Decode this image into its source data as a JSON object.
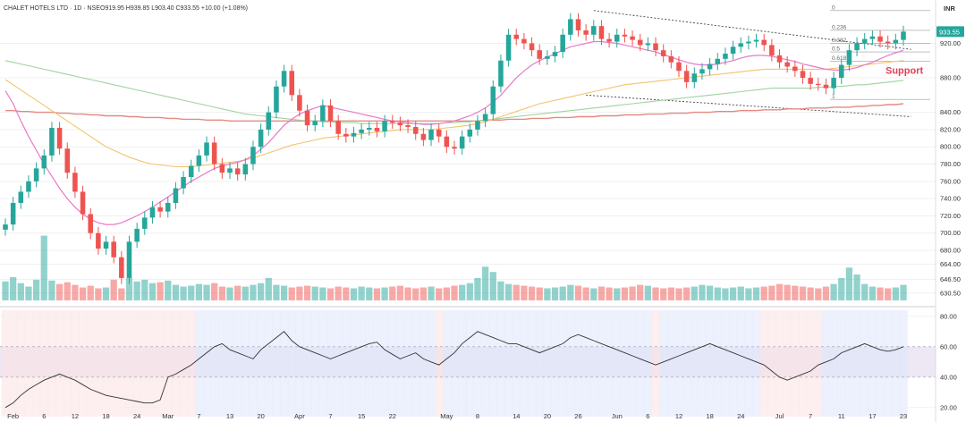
{
  "header": {
    "symbol": "CHALET HOTELS LTD · 1D · NSE",
    "ohlc": "O919.95 H939.85 L903.40 C933.55 +10.00 (+1.08%)"
  },
  "currency_label": "INR",
  "last_price_label": "933.55",
  "annotation": "Support",
  "colors": {
    "up": "#26a69a",
    "down": "#ef5350",
    "ma_short": "#e879c9",
    "ma_mid": "#f2c46d",
    "ma_long1": "#9fd39f",
    "ma_long2": "#e58a82",
    "rsi_line": "#333333",
    "support_text": "#e0405a",
    "price_badge": "#26a69a"
  },
  "chart_data": [
    {
      "type": "candlestick",
      "title": "CHALET HOTELS LTD · 1D · NSE",
      "ylim": [
        622,
        964
      ],
      "yticks": [
        630.5,
        646.5,
        664,
        680,
        700,
        720,
        740,
        760,
        780,
        800,
        820,
        840,
        880,
        920
      ],
      "xticks": [
        {
          "label": "Feb",
          "i": 1
        },
        {
          "label": "6",
          "i": 5
        },
        {
          "label": "12",
          "i": 9
        },
        {
          "label": "18",
          "i": 13
        },
        {
          "label": "24",
          "i": 17
        },
        {
          "label": "Mar",
          "i": 21
        },
        {
          "label": "7",
          "i": 25
        },
        {
          "label": "13",
          "i": 29
        },
        {
          "label": "20",
          "i": 33
        },
        {
          "label": "Apr",
          "i": 38
        },
        {
          "label": "7",
          "i": 42
        },
        {
          "label": "15",
          "i": 46
        },
        {
          "label": "22",
          "i": 50
        },
        {
          "label": "May",
          "i": 57
        },
        {
          "label": "8",
          "i": 61
        },
        {
          "label": "14",
          "i": 66
        },
        {
          "label": "20",
          "i": 70
        },
        {
          "label": "26",
          "i": 74
        },
        {
          "label": "Jun",
          "i": 79
        },
        {
          "label": "6",
          "i": 83
        },
        {
          "label": "12",
          "i": 87
        },
        {
          "label": "18",
          "i": 91
        },
        {
          "label": "24",
          "i": 95
        },
        {
          "label": "Jul",
          "i": 100
        },
        {
          "label": "7",
          "i": 104
        },
        {
          "label": "11",
          "i": 108
        },
        {
          "label": "17",
          "i": 112
        },
        {
          "label": "23",
          "i": 116
        }
      ],
      "fib_levels": [
        {
          "label": "0",
          "value": 958
        },
        {
          "label": "0.236",
          "value": 935
        },
        {
          "label": "0.382",
          "value": 920
        },
        {
          "label": "0.5",
          "value": 910
        },
        {
          "label": "0.618",
          "value": 899
        },
        {
          "label": "1",
          "value": 855
        }
      ],
      "trendlines": [
        {
          "from": {
            "i": 76,
            "v": 958
          },
          "to": {
            "i": 117,
            "v": 913
          }
        },
        {
          "from": {
            "i": 75,
            "v": 860
          },
          "to": {
            "i": 117,
            "v": 835
          }
        }
      ],
      "price": [
        710,
        735,
        748,
        760,
        775,
        790,
        822,
        798,
        770,
        748,
        722,
        700,
        682,
        690,
        672,
        648,
        690,
        705,
        718,
        730,
        725,
        735,
        752,
        765,
        778,
        790,
        805,
        780,
        770,
        775,
        768,
        780,
        800,
        820,
        840,
        870,
        888,
        860,
        842,
        825,
        830,
        848,
        830,
        815,
        812,
        816,
        820,
        822,
        818,
        830,
        828,
        825,
        823,
        815,
        808,
        820,
        812,
        800,
        798,
        812,
        820,
        830,
        838,
        870,
        900,
        930,
        925,
        920,
        912,
        902,
        905,
        910,
        930,
        948,
        935,
        930,
        940,
        925,
        922,
        930,
        928,
        924,
        918,
        920,
        912,
        905,
        898,
        888,
        875,
        885,
        890,
        896,
        902,
        908,
        916,
        920,
        922,
        924,
        918,
        906,
        898,
        893,
        888,
        880,
        873,
        872,
        868,
        880,
        895,
        912,
        920,
        925,
        928,
        922,
        920,
        924,
        933.55
      ],
      "volume": [
        644,
        649,
        642,
        638,
        646,
        697,
        645,
        641,
        643,
        640,
        637,
        639,
        636,
        637,
        646,
        636,
        648,
        644,
        646,
        642,
        643,
        645,
        640,
        638,
        639,
        641,
        640,
        642,
        638,
        637,
        639,
        638,
        640,
        642,
        648,
        640,
        639,
        637,
        638,
        639,
        638,
        637,
        636,
        638,
        637,
        636,
        638,
        637,
        636,
        637,
        638,
        639,
        637,
        636,
        637,
        638,
        636,
        637,
        639,
        640,
        642,
        648,
        661,
        655,
        644,
        641,
        640,
        639,
        638,
        637,
        636,
        637,
        638,
        640,
        639,
        637,
        636,
        638,
        637,
        636,
        637,
        638,
        640,
        639,
        637,
        636,
        637,
        636,
        637,
        638,
        640,
        639,
        637,
        636,
        637,
        638,
        636,
        637,
        638,
        639,
        641,
        640,
        639,
        638,
        637,
        636,
        638,
        641,
        648,
        660,
        652,
        641,
        638,
        637,
        636,
        637,
        640
      ],
      "ma_short": [
        865,
        850,
        830,
        812,
        796,
        780,
        766,
        752,
        740,
        730,
        722,
        716,
        712,
        710,
        710,
        712,
        716,
        720,
        725,
        730,
        736,
        742,
        748,
        754,
        760,
        765,
        770,
        775,
        778,
        780,
        782,
        785,
        790,
        797,
        805,
        815,
        825,
        832,
        838,
        842,
        845,
        848,
        846,
        844,
        842,
        840,
        838,
        836,
        834,
        832,
        830,
        829,
        828,
        827,
        826,
        826,
        827,
        828,
        830,
        833,
        836,
        840,
        845,
        852,
        860,
        870,
        880,
        888,
        895,
        900,
        904,
        908,
        912,
        916,
        918,
        920,
        922,
        922,
        921,
        920,
        918,
        916,
        914,
        912,
        910,
        907,
        904,
        901,
        898,
        896,
        895,
        895,
        896,
        898,
        900,
        903,
        905,
        906,
        906,
        905,
        903,
        901,
        899,
        896,
        894,
        892,
        890,
        889,
        889,
        890,
        892,
        895,
        898,
        902,
        906,
        909,
        912
      ],
      "ma_mid": [
        878,
        872,
        866,
        860,
        854,
        848,
        842,
        836,
        830,
        824,
        818,
        812,
        806,
        800,
        796,
        792,
        788,
        785,
        782,
        780,
        779,
        778,
        777,
        777,
        777,
        778,
        779,
        780,
        781,
        782,
        783,
        785,
        787,
        790,
        793,
        796,
        799,
        802,
        804,
        806,
        808,
        810,
        811,
        812,
        813,
        814,
        815,
        816,
        817,
        818,
        819,
        820,
        820,
        820,
        820,
        820,
        821,
        822,
        823,
        824,
        825,
        827,
        829,
        832,
        835,
        838,
        841,
        844,
        847,
        850,
        852,
        854,
        856,
        858,
        860,
        862,
        864,
        866,
        868,
        870,
        872,
        873,
        874,
        875,
        876,
        877,
        878,
        879,
        880,
        881,
        882,
        883,
        884,
        885,
        886,
        887,
        888,
        889,
        890,
        890,
        890,
        890,
        890,
        890,
        890,
        890,
        890,
        891,
        892,
        893,
        894,
        895,
        896,
        897,
        898,
        899,
        900
      ],
      "ma_long1": [
        900,
        898,
        896,
        894,
        892,
        890,
        888,
        886,
        884,
        882,
        880,
        878,
        876,
        874,
        872,
        870,
        868,
        866,
        864,
        862,
        860,
        858,
        856,
        854,
        852,
        850,
        848,
        846,
        844,
        842,
        840,
        838,
        837,
        836,
        835,
        834,
        833,
        832,
        831,
        830,
        830,
        829,
        829,
        828,
        828,
        828,
        827,
        827,
        827,
        827,
        827,
        827,
        827,
        827,
        827,
        827,
        827,
        828,
        828,
        829,
        829,
        830,
        831,
        832,
        833,
        834,
        835,
        836,
        837,
        838,
        839,
        840,
        841,
        842,
        843,
        844,
        845,
        846,
        847,
        848,
        849,
        850,
        851,
        852,
        853,
        854,
        855,
        856,
        857,
        858,
        859,
        860,
        861,
        862,
        863,
        864,
        865,
        866,
        867,
        868,
        868,
        868,
        868,
        868,
        868,
        869,
        869,
        870,
        870,
        871,
        872,
        872,
        873,
        874,
        875,
        876,
        877
      ],
      "ma_long2": [
        842,
        842,
        841,
        841,
        840,
        840,
        840,
        839,
        839,
        838,
        838,
        837,
        837,
        836,
        836,
        836,
        835,
        835,
        834,
        834,
        834,
        833,
        833,
        832,
        832,
        832,
        831,
        831,
        831,
        830,
        830,
        830,
        830,
        830,
        830,
        830,
        830,
        830,
        830,
        830,
        830,
        830,
        830,
        830,
        830,
        830,
        830,
        830,
        830,
        830,
        830,
        830,
        830,
        830,
        830,
        830,
        830,
        830,
        830,
        830,
        830,
        830,
        831,
        831,
        831,
        832,
        832,
        832,
        833,
        833,
        833,
        834,
        834,
        834,
        835,
        835,
        835,
        836,
        836,
        836,
        837,
        837,
        837,
        838,
        838,
        838,
        839,
        839,
        839,
        840,
        840,
        840,
        841,
        841,
        841,
        842,
        842,
        842,
        843,
        843,
        843,
        844,
        844,
        844,
        845,
        845,
        845,
        846,
        846,
        846,
        847,
        847,
        848,
        848,
        849,
        849,
        850
      ]
    },
    {
      "type": "line",
      "title": "",
      "ylim": [
        14,
        84
      ],
      "yticks": [
        20,
        40,
        60,
        80
      ],
      "bands": [
        40,
        60
      ],
      "values": [
        20,
        23,
        28,
        32,
        35,
        38,
        40,
        42,
        40,
        38,
        35,
        32,
        30,
        28,
        27,
        26,
        25,
        24,
        23,
        23,
        25,
        40,
        42,
        45,
        48,
        52,
        56,
        60,
        62,
        58,
        56,
        54,
        52,
        58,
        62,
        66,
        70,
        64,
        60,
        58,
        56,
        54,
        52,
        54,
        56,
        58,
        60,
        62,
        63,
        58,
        55,
        52,
        54,
        56,
        52,
        50,
        48,
        52,
        56,
        62,
        66,
        70,
        68,
        66,
        64,
        62,
        62,
        60,
        58,
        56,
        58,
        60,
        62,
        66,
        68,
        66,
        64,
        62,
        60,
        58,
        56,
        54,
        52,
        50,
        48,
        50,
        52,
        54,
        56,
        58,
        60,
        62,
        60,
        58,
        56,
        54,
        52,
        50,
        48,
        44,
        40,
        38,
        40,
        42,
        44,
        48,
        50,
        52,
        56,
        58,
        60,
        62,
        60,
        58,
        57,
        58,
        60
      ]
    }
  ]
}
